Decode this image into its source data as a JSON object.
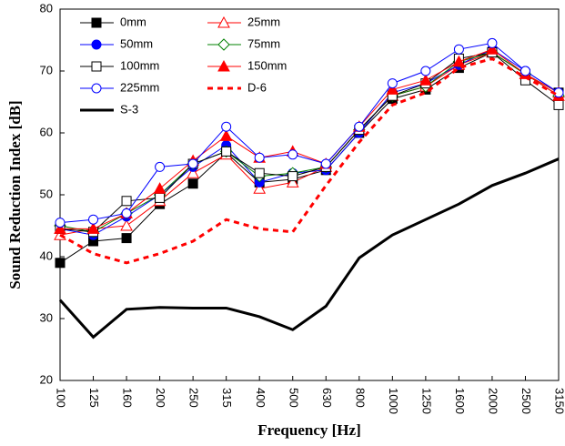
{
  "chart_data": {
    "type": "line",
    "x_label": "Frequency [Hz]",
    "y_label": "Sound Reduction Index [dB]",
    "categories": [
      "100",
      "125",
      "160",
      "200",
      "250",
      "315",
      "400",
      "500",
      "630",
      "800",
      "1000",
      "1250",
      "1600",
      "2000",
      "2500",
      "3150"
    ],
    "ylim": [
      20,
      80
    ],
    "yticks": [
      20,
      30,
      40,
      50,
      60,
      70,
      80
    ],
    "grid": false,
    "legend": "upper-left",
    "series": [
      {
        "name": "0mm",
        "color": "#000000",
        "marker": "square",
        "marker_filled": true,
        "dash": false,
        "width": 1,
        "values": [
          39,
          42.5,
          43,
          48.5,
          51.8,
          56.8,
          52,
          52.5,
          54,
          60,
          65.5,
          67,
          70.5,
          73,
          69.5,
          66.5
        ]
      },
      {
        "name": "25mm",
        "color": "#ff0000",
        "marker": "triangle",
        "marker_filled": false,
        "dash": false,
        "width": 1,
        "values": [
          43.5,
          44.5,
          45,
          49,
          53.5,
          56.5,
          51,
          52,
          54.5,
          60.5,
          66,
          67.5,
          71,
          73,
          69.5,
          66.5
        ]
      },
      {
        "name": "50mm",
        "color": "#0000ff",
        "marker": "circle",
        "marker_filled": true,
        "dash": false,
        "width": 1,
        "values": [
          44.5,
          43.5,
          46.5,
          50,
          54.5,
          58,
          52,
          53.5,
          54,
          60,
          66.5,
          68,
          71,
          73.5,
          70,
          66.5
        ]
      },
      {
        "name": "75mm",
        "color": "#008000",
        "marker": "diamond",
        "marker_filled": false,
        "dash": false,
        "width": 1,
        "values": [
          45,
          44,
          47,
          50,
          55,
          57,
          53,
          53.5,
          54.5,
          60.5,
          66,
          67.5,
          71.5,
          73,
          69.5,
          66
        ]
      },
      {
        "name": "100mm",
        "color": "#000000",
        "marker": "square",
        "marker_filled": false,
        "dash": false,
        "width": 1,
        "values": [
          44.5,
          44,
          49,
          49.5,
          55,
          57,
          53.5,
          53,
          54.5,
          60.5,
          66,
          68,
          72,
          73,
          68.5,
          64.5
        ]
      },
      {
        "name": "150mm",
        "color": "#ff0000",
        "marker": "triangle",
        "marker_filled": true,
        "dash": false,
        "width": 1,
        "values": [
          44.5,
          44.5,
          47,
          51,
          55.5,
          59.5,
          56,
          57,
          55,
          61,
          67,
          68.5,
          71.5,
          73.5,
          69.5,
          66
        ]
      },
      {
        "name": "225mm",
        "color": "#0000ff",
        "marker": "circle",
        "marker_filled": false,
        "dash": false,
        "width": 1,
        "values": [
          45.5,
          46,
          47,
          54.5,
          55,
          61,
          56,
          56.5,
          55,
          61,
          68,
          70,
          73.5,
          74.5,
          70,
          66.5
        ]
      },
      {
        "name": "D-6",
        "color": "#ff0000",
        "marker": "none",
        "marker_filled": false,
        "dash": true,
        "width": 3,
        "values": [
          43.5,
          40.5,
          39,
          40.5,
          42.5,
          46,
          44.5,
          44,
          51.5,
          58.5,
          64.5,
          66.5,
          70.5,
          72,
          69,
          66
        ]
      },
      {
        "name": "S-3",
        "color": "#000000",
        "marker": "none",
        "marker_filled": false,
        "dash": false,
        "width": 3,
        "values": [
          33,
          27,
          31.5,
          31.8,
          31.7,
          31.7,
          30.3,
          28.2,
          32,
          39.8,
          43.5,
          46,
          48.5,
          51.5,
          53.5,
          55.8
        ]
      }
    ]
  }
}
